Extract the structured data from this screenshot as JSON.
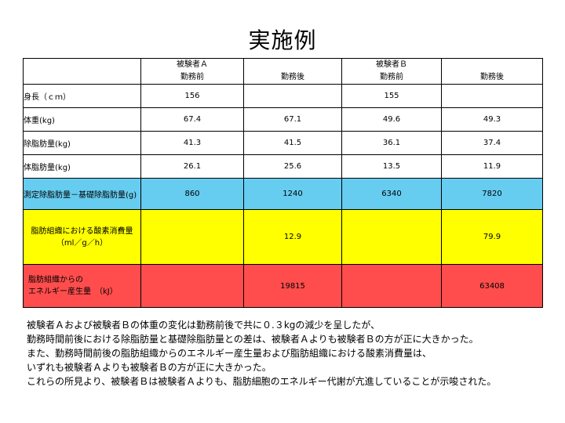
{
  "title": "実施例",
  "header": {
    "subjectA": "被験者Ａ",
    "subjectB": "被験者Ｂ",
    "before": "勤務前",
    "after": "勤務後"
  },
  "rows": [
    {
      "label": "身長（ｃｍ）",
      "a_before": "156",
      "a_after": "",
      "b_before": "155",
      "b_after": ""
    },
    {
      "label": "体重(kg)",
      "a_before": "67.4",
      "a_after": "67.1",
      "b_before": "49.6",
      "b_after": "49.3"
    },
    {
      "label": "除脂肪量(kg)",
      "a_before": "41.3",
      "a_after": "41.5",
      "b_before": "36.1",
      "b_after": "37.4"
    },
    {
      "label": "体脂肪量(kg)",
      "a_before": "26.1",
      "a_after": "25.6",
      "b_before": "13.5",
      "b_after": "11.9"
    },
    {
      "label": "測定除脂肪量－基礎除脂肪量(g)",
      "a_before": "860",
      "a_after": "1240",
      "b_before": "6340",
      "b_after": "7820"
    }
  ],
  "oxygen_row": {
    "label_line1": "脂肪組織における酸素消費量",
    "label_line2": "（ml／g／h）",
    "a_after": "12.9",
    "b_after": "79.9"
  },
  "energy_row": {
    "label_line1": "脂肪組織からの",
    "label_line2": "エネルギー産生量　（kJ）",
    "a_after": "19815",
    "b_after": "63408"
  },
  "note_lines": [
    "被験者Ａおよび被験者Ｂの体重の変化は勤務前後で共に０.３kgの減少を呈したが、",
    "勤務時間前後における除脂肪量と基礎除脂肪量との差は、被験者Ａよりも被験者Ｂの方が正に大きかった。",
    "また、勤務時間前後の脂肪組織からのエネルギー産生量および脂肪組織における酸素消費量は、",
    "いずれも被験者Ａよりも被験者Ｂの方が正に大きかった。",
    "これらの所見より、被験者Ｂは被験者Ａよりも、脂肪細胞のエネルギー代謝が亢進していることが示唆された。"
  ],
  "colors": {
    "blue_row": "#66ccf0",
    "yellow_row": "#ffff00",
    "red_row": "#ff4d4d"
  }
}
